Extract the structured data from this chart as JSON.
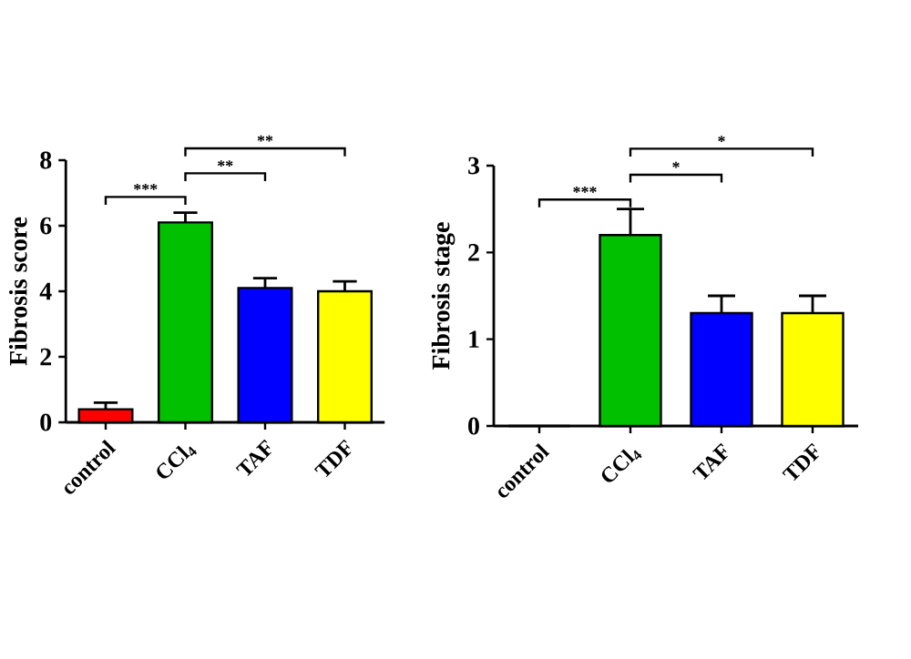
{
  "chart_data": [
    {
      "type": "bar",
      "ylabel": "Fibrosis score",
      "categories": [
        "control",
        "CCl$_{4}$",
        "TAF",
        "TDF"
      ],
      "values": [
        0.4,
        6.1,
        4.1,
        4.0
      ],
      "errors": [
        [
          0.4,
          0.6
        ],
        [
          6.1,
          6.4
        ],
        [
          4.1,
          4.4
        ],
        [
          4.0,
          4.3
        ]
      ],
      "colors": [
        "#ff0000",
        "#00c000",
        "#0000ff",
        "#ffff00"
      ],
      "ylim": [
        0,
        8
      ],
      "yticks": [
        0,
        2,
        4,
        6,
        8
      ],
      "annotations": [
        "***",
        "**",
        "**"
      ]
    },
    {
      "type": "bar",
      "ylabel": "Fibrosis stage",
      "categories": [
        "control",
        "CCl$_{4}$",
        "TAF",
        "TDF"
      ],
      "values": [
        0,
        2.2,
        1.3,
        1.3
      ],
      "errors": [
        null,
        [
          2.2,
          2.5
        ],
        [
          1.3,
          1.5
        ],
        [
          1.3,
          1.5
        ]
      ],
      "colors": [
        "#ff0000",
        "#00c000",
        "#0000ff",
        "#ffff00"
      ],
      "ylim": [
        0,
        3
      ],
      "yticks": [
        0,
        1,
        2,
        3
      ],
      "annotations": [
        "***",
        "*",
        "*"
      ]
    }
  ]
}
